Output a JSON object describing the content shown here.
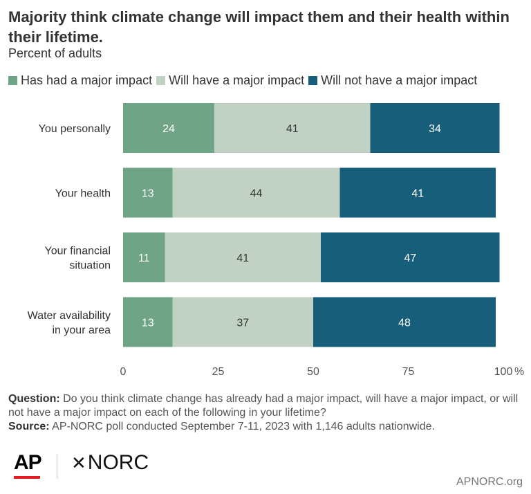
{
  "title": "Majority think climate change will impact them and their health within their lifetime.",
  "subtitle": "Percent of adults",
  "colors": {
    "had": "#6fa487",
    "will": "#c1d2c5",
    "will_not": "#175e7a",
    "text_dark": "#333333",
    "text_light": "#ffffff"
  },
  "chart_data": {
    "type": "bar",
    "orientation": "horizontal",
    "stacked": true,
    "categories": [
      "You personally",
      "Your health",
      "Your financial situation",
      "Water availability in your area"
    ],
    "category_lines": [
      [
        "You personally"
      ],
      [
        "Your health"
      ],
      [
        "Your financial",
        "situation"
      ],
      [
        "Water availability",
        "in your area"
      ]
    ],
    "series": [
      {
        "name": "Has had a major impact",
        "values": [
          24,
          13,
          11,
          13
        ]
      },
      {
        "name": "Will have a major impact",
        "values": [
          41,
          44,
          41,
          37
        ]
      },
      {
        "name": "Will not have a major impact",
        "values": [
          34,
          41,
          47,
          48
        ]
      }
    ],
    "xlim": [
      0,
      100
    ],
    "x_ticks": [
      "0",
      "25",
      "50",
      "75",
      "100"
    ],
    "x_unit": "%",
    "legend_position": "top-left",
    "grid": false
  },
  "footnote": {
    "question_label": "Question:",
    "question_text": "Do you think climate change has already had a major impact, will have a major impact, or will not have a major impact on each of the following in your lifetime?",
    "source_label": "Source:",
    "source_text": "AP-NORC poll conducted September 7-11, 2023 with 1,146 adults nationwide."
  },
  "logos": {
    "ap": "AP",
    "norc": "NORC"
  },
  "site": "APNORC.org"
}
